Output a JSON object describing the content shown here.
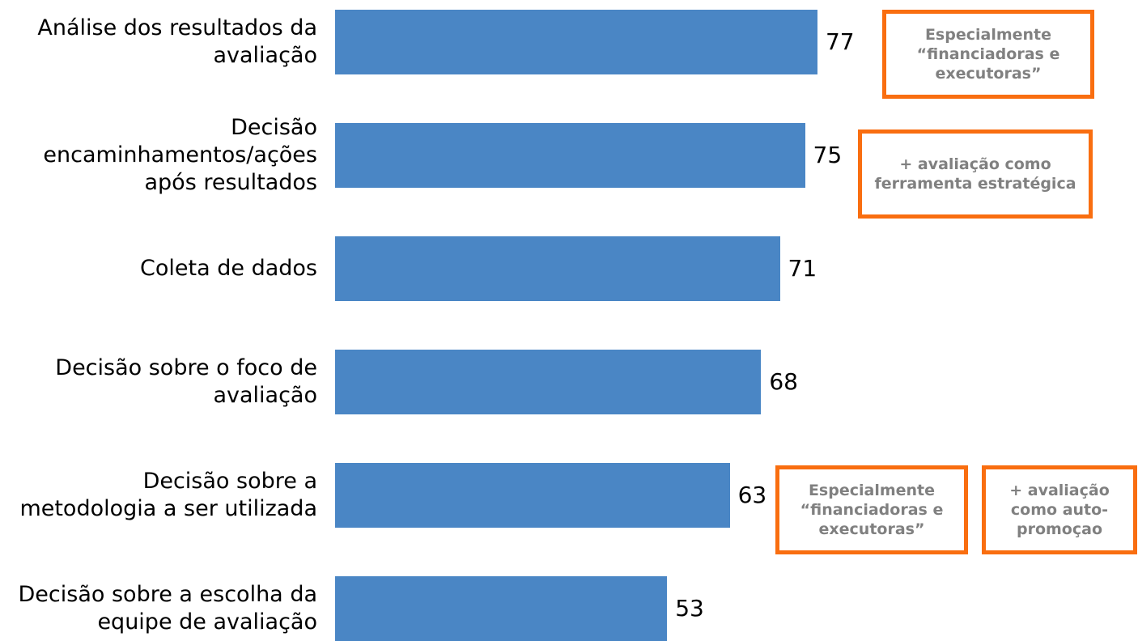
{
  "chart_data": {
    "type": "bar",
    "orientation": "horizontal",
    "categories": [
      "Análise dos resultados da avaliação",
      "Decisão encaminhamentos/ações após resultados",
      "Coleta de dados",
      "Decisão sobre o foco de avaliação",
      "Decisão sobre a metodologia a ser utilizada",
      "Decisão sobre a escolha da equipe de avaliação"
    ],
    "values": [
      77,
      75,
      71,
      68,
      63,
      53
    ],
    "color": "#4a86c5",
    "annotations": [
      "Especialmente “financiadoras e executoras”",
      "+ avaliação como ferramenta estratégica",
      "Especialmente “financiadoras e executoras”",
      "+ avaliação como auto-promoçao"
    ],
    "annotation_color": "#f96e10"
  }
}
